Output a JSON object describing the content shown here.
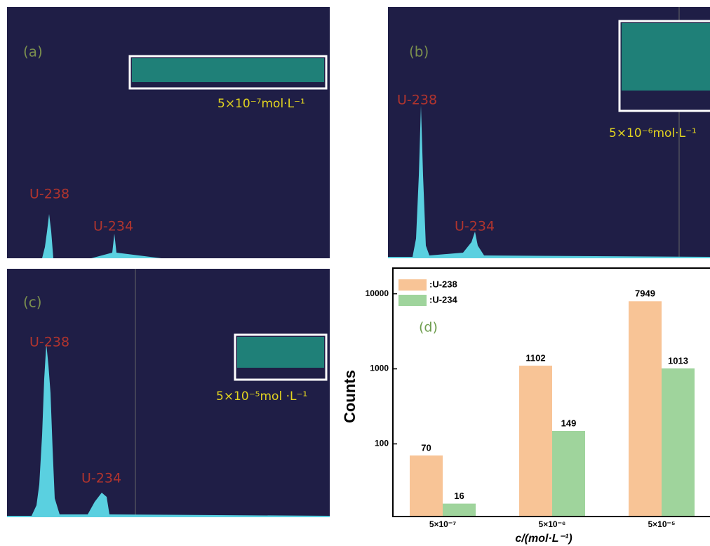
{
  "panels": [
    {
      "label": "(a)",
      "peaks": [
        "U-238",
        "U-234"
      ],
      "concentration": "5×10⁻⁷mol·L⁻¹"
    },
    {
      "label": "(b)",
      "peaks": [
        "U-238",
        "U-234"
      ],
      "concentration": "5×10⁻⁶mol·L⁻¹"
    },
    {
      "label": "(c)",
      "peaks": [
        "U-238",
        "U-234"
      ],
      "concentration": "5×10⁻⁵mol ·L⁻¹"
    }
  ],
  "chart_data": {
    "type": "bar",
    "label": "(d)",
    "categories": [
      "5×10⁻⁷",
      "5×10⁻⁶",
      "5×10⁻⁵"
    ],
    "series": [
      {
        "name": ":U-238",
        "color": "#f8c496",
        "values": [
          70,
          1102,
          7949
        ]
      },
      {
        "name": ":U-234",
        "color": "#9fd49c",
        "values": [
          16,
          149,
          1013
        ]
      }
    ],
    "ylim": [
      11,
      22000
    ],
    "yticks": [
      100,
      1000,
      10000
    ],
    "log": true,
    "ylabel": "Counts",
    "xlabel": "c/(mol·L⁻¹)",
    "legend": "upper left"
  }
}
